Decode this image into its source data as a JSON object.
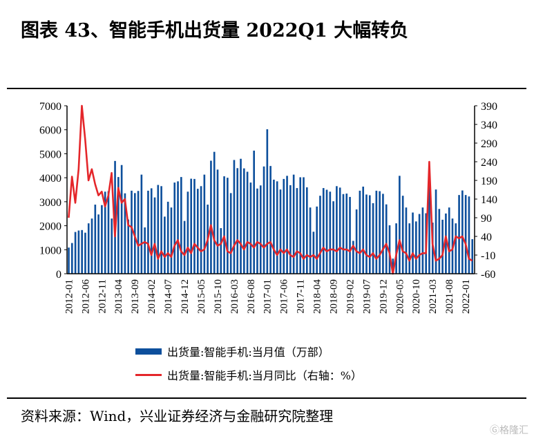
{
  "title": "图表 43、智能手机出货量 2022Q1 大幅转负",
  "source": "资料来源：Wind，兴业证券经济与金融研究院整理",
  "watermark": "格隆汇",
  "colors": {
    "bar": "#0d4f9c",
    "line": "#e4262a"
  },
  "chart_data": {
    "type": "bar+line",
    "x_start": "2012-01",
    "x_end": "2022-03",
    "x_tick_labels": [
      "2012-01",
      "2012-06",
      "2012-11",
      "2013-04",
      "2013-09",
      "2014-02",
      "2014-07",
      "2014-12",
      "2015-05",
      "2015-10",
      "2016-03",
      "2016-08",
      "2017-01",
      "2017-06",
      "2017-11",
      "2018-04",
      "2018-09",
      "2019-02",
      "2019-07",
      "2019-12",
      "2020-05",
      "2020-10",
      "2021-03",
      "2021-08",
      "2022-01"
    ],
    "left_axis": {
      "min": 0,
      "max": 7000,
      "ticks": [
        0,
        1000,
        2000,
        3000,
        4000,
        5000,
        6000,
        7000
      ]
    },
    "right_axis": {
      "min": -60,
      "max": 390,
      "ticks": [
        -60,
        -10,
        40,
        90,
        140,
        190,
        240,
        290,
        340,
        390
      ]
    },
    "legend": [
      "出货量:智能手机:当月值（万部）",
      "出货量:智能手机:当月同比（右轴：%）"
    ],
    "series": [
      {
        "name": "出货量:智能手机:当月值（万部）",
        "axis": "left",
        "type": "bar",
        "values": [
          1090,
          1280,
          1740,
          1800,
          1820,
          1710,
          2100,
          2300,
          2880,
          2470,
          2860,
          3420,
          3440,
          2300,
          4700,
          4030,
          4530,
          3350,
          2260,
          3460,
          3360,
          3450,
          4130,
          1930,
          3460,
          3560,
          3180,
          3700,
          3650,
          2380,
          3000,
          2760,
          3800,
          3850,
          4030,
          2200,
          3420,
          3960,
          3950,
          3540,
          3650,
          4130,
          2880,
          4710,
          5080,
          4340,
          1900,
          4060,
          4000,
          3360,
          4740,
          4400,
          4790,
          4390,
          4250,
          3800,
          5130,
          3550,
          3680,
          4470,
          6020,
          4490,
          3920,
          3850,
          3510,
          3950,
          4080,
          3690,
          4130,
          3570,
          4020,
          4020,
          3600,
          2760,
          1750,
          2800,
          3250,
          3570,
          3500,
          3420,
          3020,
          3650,
          3590,
          3320,
          3340,
          3200,
          1370,
          2680,
          3460,
          3630,
          3300,
          3270,
          2940,
          3460,
          3440,
          3330,
          2890,
          2020,
          630,
          2100,
          4080,
          3250,
          2760,
          2100,
          2550,
          2180,
          2490,
          2760,
          2520,
          3950,
          2130,
          3510,
          2700,
          2250,
          2510,
          2760,
          2300,
          2100,
          3280,
          3470,
          3280,
          3220,
          1440
        ]
      },
      {
        "name": "出货量:智能手机:当月同比（右轴：%）",
        "axis": "right",
        "type": "line",
        "values": [
          90,
          200,
          130,
          220,
          390,
          300,
          190,
          220,
          180,
          150,
          160,
          120,
          150,
          210,
          40,
          170,
          130,
          140,
          70,
          65,
          40,
          15,
          20,
          25,
          20,
          -10,
          20,
          -20,
          0,
          -15,
          -5,
          -15,
          15,
          30,
          0,
          -10,
          10,
          -5,
          20,
          10,
          0,
          5,
          30,
          70,
          30,
          15,
          20,
          40,
          0,
          -5,
          15,
          30,
          20,
          5,
          25,
          20,
          10,
          25,
          20,
          10,
          20,
          25,
          5,
          -10,
          5,
          -5,
          5,
          -10,
          -15,
          0,
          -5,
          -20,
          -10,
          -15,
          -10,
          -20,
          -5,
          10,
          0,
          5,
          5,
          0,
          10,
          5,
          5,
          0,
          15,
          0,
          -5,
          5,
          -10,
          -15,
          -5,
          -20,
          -10,
          5,
          20,
          -5,
          -60,
          -10,
          30,
          0,
          -5,
          -25,
          -5,
          -20,
          -10,
          -5,
          -5,
          240,
          20,
          -25,
          -20,
          -10,
          40,
          0,
          5,
          40,
          35,
          40,
          20,
          -20,
          -25
        ]
      }
    ]
  }
}
